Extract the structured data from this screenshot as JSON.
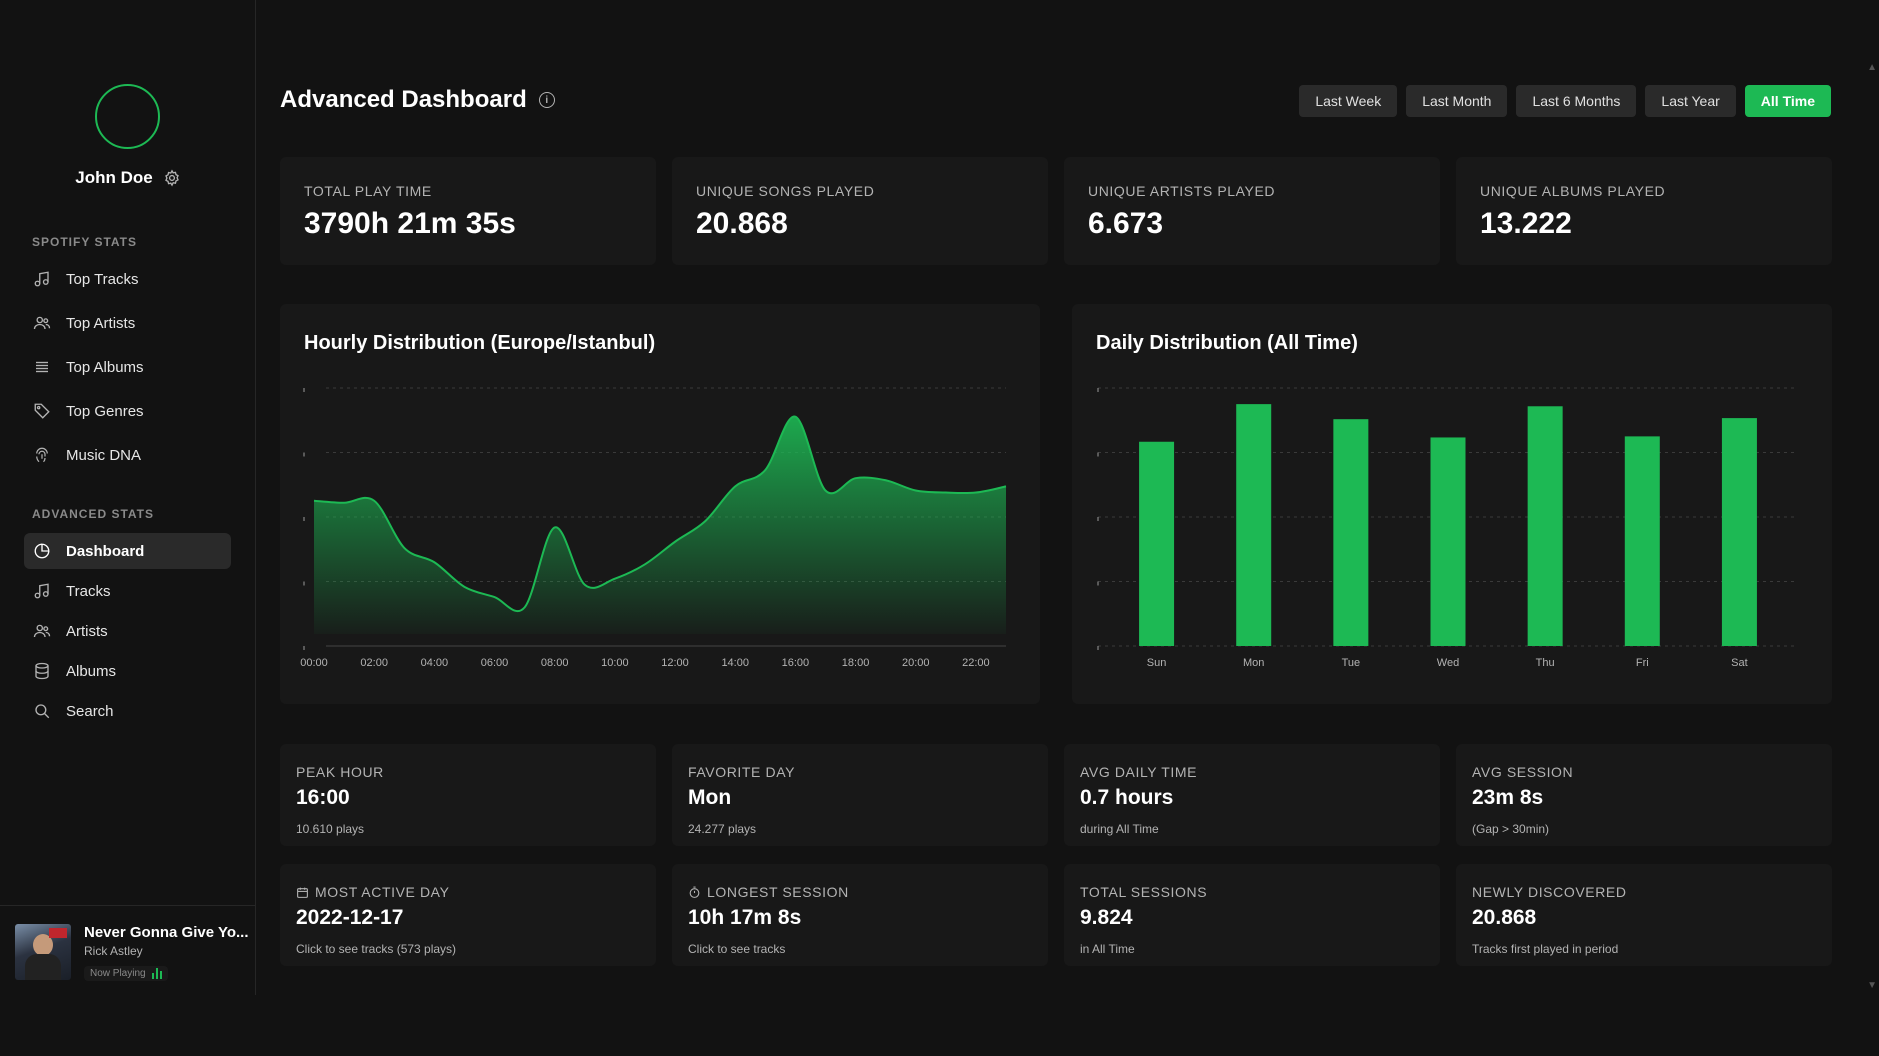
{
  "user": {
    "name": "John Doe"
  },
  "sidebar": {
    "sections": [
      {
        "label": "SPOTIFY STATS",
        "items": [
          {
            "label": "Top Tracks",
            "icon": "music-note-icon"
          },
          {
            "label": "Top Artists",
            "icon": "users-icon"
          },
          {
            "label": "Top Albums",
            "icon": "list-icon"
          },
          {
            "label": "Top Genres",
            "icon": "tag-icon"
          },
          {
            "label": "Music DNA",
            "icon": "fingerprint-icon"
          }
        ]
      },
      {
        "label": "ADVANCED STATS",
        "items": [
          {
            "label": "Dashboard",
            "icon": "pie-chart-icon",
            "active": true
          },
          {
            "label": "Tracks",
            "icon": "music-note-icon"
          },
          {
            "label": "Artists",
            "icon": "users-icon"
          },
          {
            "label": "Albums",
            "icon": "database-icon"
          },
          {
            "label": "Search",
            "icon": "search-icon"
          }
        ]
      }
    ]
  },
  "now_playing": {
    "title": "Never Gonna Give Yo...",
    "artist": "Rick Astley",
    "status": "Now Playing"
  },
  "header": {
    "title": "Advanced Dashboard"
  },
  "ranges": [
    {
      "label": "Last Week",
      "active": false
    },
    {
      "label": "Last Month",
      "active": false
    },
    {
      "label": "Last 6 Months",
      "active": false
    },
    {
      "label": "Last Year",
      "active": false
    },
    {
      "label": "All Time",
      "active": true
    }
  ],
  "stats": [
    {
      "label": "TOTAL PLAY TIME",
      "value": "3790h 21m 35s"
    },
    {
      "label": "UNIQUE SONGS PLAYED",
      "value": "20.868"
    },
    {
      "label": "UNIQUE ARTISTS PLAYED",
      "value": "6.673"
    },
    {
      "label": "UNIQUE ALBUMS PLAYED",
      "value": "13.222"
    }
  ],
  "chart_data": [
    {
      "type": "area",
      "title": "Hourly Distribution (Europe/Istanbul)",
      "x": [
        "00:00",
        "01:00",
        "02:00",
        "03:00",
        "04:00",
        "05:00",
        "06:00",
        "07:00",
        "08:00",
        "09:00",
        "10:00",
        "11:00",
        "12:00",
        "13:00",
        "14:00",
        "15:00",
        "16:00",
        "17:00",
        "18:00",
        "19:00",
        "20:00",
        "21:00",
        "22:00",
        "23:00"
      ],
      "tick_labels": [
        "00:00",
        "02:00",
        "04:00",
        "06:00",
        "08:00",
        "10:00",
        "12:00",
        "14:00",
        "16:00",
        "18:00",
        "20:00",
        "22:00"
      ],
      "values": [
        6.5,
        6.4,
        6.5,
        4.2,
        3.5,
        2.3,
        1.8,
        1.3,
        5.2,
        2.4,
        2.7,
        3.4,
        4.5,
        5.5,
        7.2,
        8.0,
        10.6,
        7.0,
        7.6,
        7.5,
        7.0,
        6.9,
        6.9,
        7.2
      ],
      "ylim": [
        0,
        12
      ],
      "ylabel": "",
      "xlabel": "",
      "color": "#1db954"
    },
    {
      "type": "bar",
      "title": "Daily Distribution (All Time)",
      "categories": [
        "Sun",
        "Mon",
        "Tue",
        "Wed",
        "Thu",
        "Fri",
        "Sat"
      ],
      "values": [
        19.0,
        22.5,
        21.1,
        19.4,
        22.3,
        19.5,
        21.2
      ],
      "ylim": [
        0,
        24
      ],
      "ylabel": "",
      "xlabel": "",
      "color": "#1db954"
    }
  ],
  "insights": [
    {
      "label": "PEAK HOUR",
      "value": "16:00",
      "sub": "10.610 plays",
      "icon": ""
    },
    {
      "label": "FAVORITE DAY",
      "value": "Mon",
      "sub": "24.277 plays",
      "icon": ""
    },
    {
      "label": "AVG DAILY TIME",
      "value": "0.7 hours",
      "sub": "during All Time",
      "icon": ""
    },
    {
      "label": "AVG SESSION",
      "value": "23m 8s",
      "sub": "(Gap > 30min)",
      "icon": ""
    },
    {
      "label": "MOST ACTIVE DAY",
      "value": "2022-12-17",
      "sub": "Click to see tracks (573 plays)",
      "icon": "calendar-icon"
    },
    {
      "label": "LONGEST SESSION",
      "value": "10h 17m 8s",
      "sub": "Click to see tracks",
      "icon": "stopwatch-icon"
    },
    {
      "label": "TOTAL SESSIONS",
      "value": "9.824",
      "sub": "in All Time",
      "icon": ""
    },
    {
      "label": "NEWLY DISCOVERED",
      "value": "20.868",
      "sub": "Tracks first played in period",
      "icon": ""
    }
  ],
  "colors": {
    "accent": "#1db954",
    "background": "#121212",
    "card": "#181818"
  }
}
